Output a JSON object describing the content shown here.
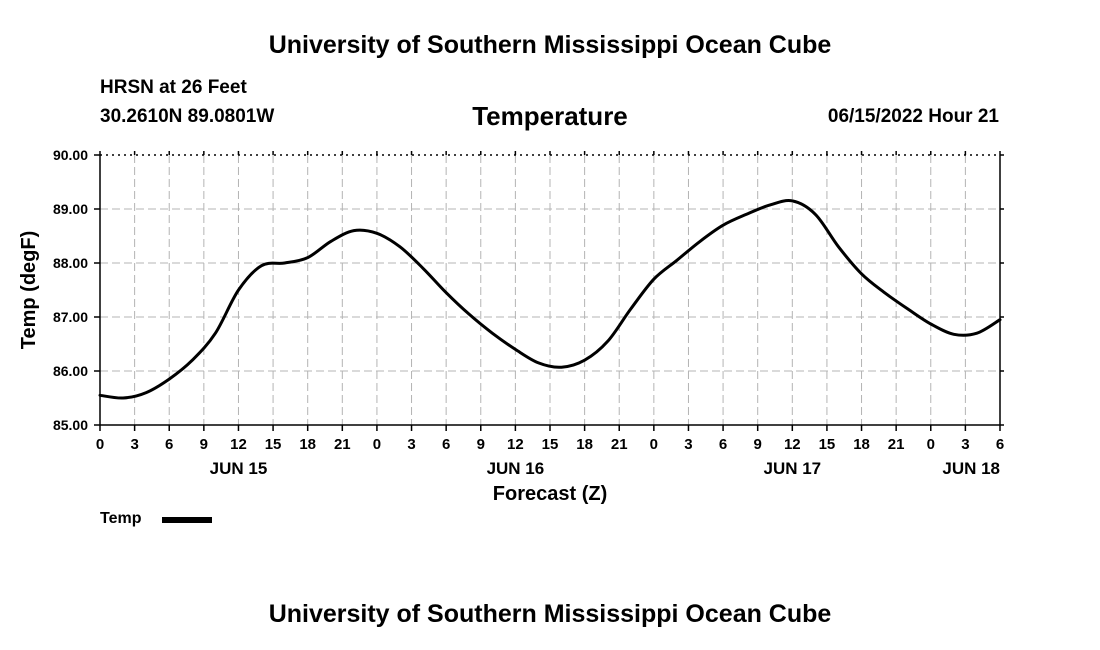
{
  "header": {
    "title": "University of Southern Mississippi Ocean Cube",
    "station": "HRSN at 26 Feet",
    "coordinates": "30.2610N  89.0801W",
    "chart_title": "Temperature",
    "date_hour": "06/15/2022 Hour 21"
  },
  "footer": {
    "title": "University of Southern Mississippi Ocean Cube"
  },
  "legend": {
    "label": "Temp"
  },
  "chart_data": {
    "type": "line",
    "title": "Temperature",
    "xlabel": "Forecast (Z)",
    "ylabel": "Temp (degF)",
    "ylim": [
      85.0,
      90.0
    ],
    "y_ticks": [
      "85.00",
      "86.00",
      "87.00",
      "88.00",
      "89.00",
      "90.00"
    ],
    "xlim": [
      0,
      78
    ],
    "x_tick_labels": [
      "0",
      "3",
      "6",
      "9",
      "12",
      "15",
      "18",
      "21",
      "0",
      "3",
      "6",
      "9",
      "12",
      "15",
      "18",
      "21",
      "0",
      "3",
      "6",
      "9",
      "12",
      "15",
      "18",
      "21",
      "0",
      "3",
      "6"
    ],
    "day_labels": [
      {
        "label": "JUN 15",
        "hour": 12
      },
      {
        "label": "JUN 16",
        "hour": 36
      },
      {
        "label": "JUN 17",
        "hour": 60
      },
      {
        "label": "JUN 18",
        "hour": 78
      }
    ],
    "grid": true,
    "legend_position": "bottom-left",
    "series": [
      {
        "name": "Temp",
        "x": [
          0,
          2,
          4,
          6,
          8,
          10,
          12,
          14,
          16,
          18,
          20,
          22,
          24,
          26,
          28,
          30,
          32,
          34,
          36,
          38,
          40,
          42,
          44,
          46,
          48,
          50,
          52,
          54,
          56,
          58,
          60,
          62,
          64,
          66,
          68,
          70,
          72,
          74,
          76,
          78
        ],
        "values": [
          85.55,
          85.5,
          85.6,
          85.85,
          86.2,
          86.7,
          87.5,
          87.95,
          88.0,
          88.1,
          88.4,
          88.6,
          88.55,
          88.3,
          87.9,
          87.45,
          87.05,
          86.7,
          86.4,
          86.15,
          86.07,
          86.2,
          86.55,
          87.15,
          87.7,
          88.05,
          88.4,
          88.7,
          88.9,
          89.07,
          89.15,
          88.9,
          88.3,
          87.8,
          87.45,
          87.15,
          86.87,
          86.68,
          86.7,
          86.95
        ]
      }
    ]
  }
}
